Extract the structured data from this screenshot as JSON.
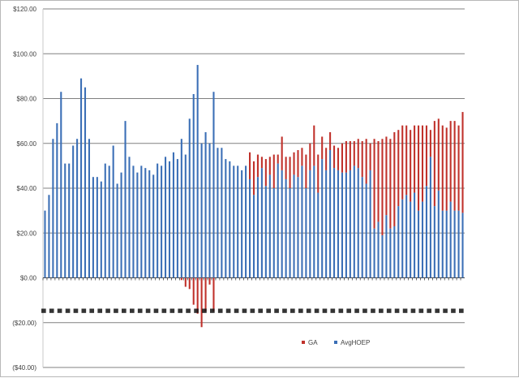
{
  "chart_data": {
    "type": "bar",
    "stacked": true,
    "title": "",
    "xlabel": "",
    "ylabel": "",
    "ylim": [
      -40,
      120
    ],
    "y_ticks": [
      "($40.00)",
      "($20.00)",
      "$0.00",
      "$20.00",
      "$40.00",
      "$60.00",
      "$80.00",
      "$100.00",
      "$120.00"
    ],
    "y_tick_values": [
      -40,
      -20,
      0,
      20,
      40,
      60,
      80,
      100,
      120
    ],
    "grid": true,
    "legend_position": "bottom-right",
    "colors": {
      "GA": "#c0312b",
      "AvgHOEP": "#3b6fb6",
      "grid": "#808080"
    },
    "category_labels_note": "category labels overlapped and illegible",
    "series": [
      {
        "name": "AvgHOEP",
        "values": [
          30,
          37,
          62,
          69,
          83,
          51,
          51,
          59,
          62,
          89,
          85,
          62,
          45,
          45,
          43,
          51,
          50,
          59,
          42,
          47,
          70,
          54,
          50,
          47,
          50,
          49,
          48,
          46,
          51,
          50,
          54,
          52,
          56,
          53,
          62,
          55,
          71,
          82,
          95,
          60,
          65,
          60,
          83,
          58,
          58,
          53,
          52,
          50,
          50,
          48,
          50,
          44,
          37,
          45,
          49,
          41,
          46,
          40,
          51,
          48,
          44,
          40,
          46,
          45,
          50,
          40,
          48,
          50,
          38,
          53,
          48,
          57,
          49,
          48,
          47,
          47,
          48,
          50,
          49,
          45,
          42,
          48,
          22,
          25,
          19,
          28,
          22,
          23,
          32,
          35,
          37,
          34,
          38,
          30,
          34,
          41,
          54,
          32,
          39,
          30,
          30,
          34,
          30,
          30,
          29
        ],
        "note": "values reflect visible bar heights"
      },
      {
        "name": "GA",
        "values": [
          0,
          0,
          0,
          0,
          0,
          0,
          0,
          0,
          0,
          0,
          0,
          0,
          0,
          0,
          0,
          0,
          0,
          0,
          0,
          0,
          0,
          0,
          0,
          0,
          0,
          0,
          0,
          0,
          0,
          0,
          0,
          0,
          0,
          0,
          -1,
          -4,
          -5,
          -12,
          -16,
          -22,
          -15,
          -3,
          -15,
          0,
          0,
          0,
          0,
          0,
          0,
          0,
          0,
          12,
          15,
          10,
          5,
          12,
          8,
          15,
          4,
          15,
          10,
          14,
          10,
          12,
          8,
          15,
          12,
          18,
          17,
          10,
          10,
          8,
          10,
          10,
          13,
          14,
          13,
          11,
          13,
          16,
          20,
          12,
          40,
          36,
          43,
          35,
          40,
          42,
          34,
          33,
          31,
          32,
          30,
          38,
          34,
          27,
          12,
          38,
          32,
          38,
          37,
          36,
          40,
          38,
          45
        ]
      }
    ]
  },
  "legend": {
    "items": [
      {
        "label": "GA",
        "color": "#c0312b"
      },
      {
        "label": "AvgHOEP",
        "color": "#3b6fb6"
      }
    ]
  }
}
